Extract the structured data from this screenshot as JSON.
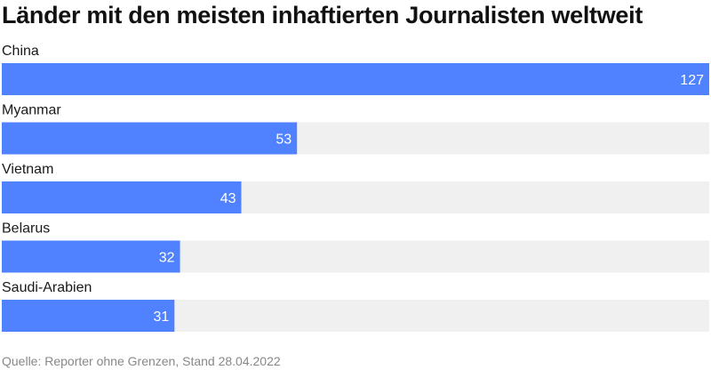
{
  "chart_data": {
    "type": "bar",
    "orientation": "horizontal",
    "title": "Länder mit den meisten inhaftierten Journalisten weltweit",
    "categories": [
      "China",
      "Myanmar",
      "Vietnam",
      "Belarus",
      "Saudi-Arabien"
    ],
    "values": [
      127,
      53,
      43,
      32,
      31
    ],
    "xlim": [
      0,
      127
    ],
    "grid": false,
    "data_labels": true
  },
  "footer": {
    "source": "Quelle: Reporter ohne Grenzen, Stand 28.04.2022"
  },
  "colors": {
    "bar": "#5081ff",
    "track": "#f0f0f0",
    "label": "#1a1a1a",
    "value_label": "#ffffff"
  }
}
